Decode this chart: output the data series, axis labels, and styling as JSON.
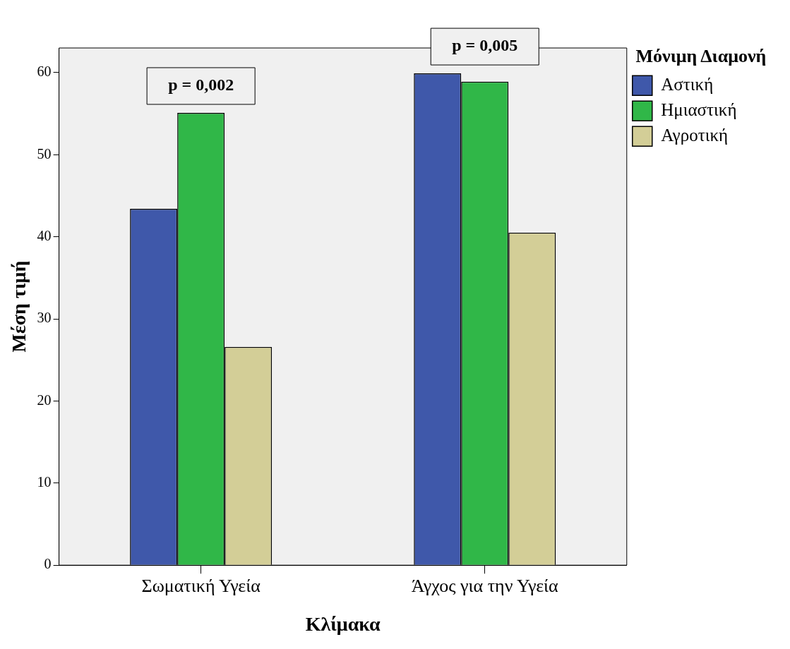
{
  "chart_data": {
    "type": "bar",
    "xlabel": "Κλίμακα",
    "ylabel": "Μέση τιμή",
    "legend_title": "Μόνιμη Διαμονή",
    "categories": [
      "Σωματική Υγεία",
      "Άγχος για την Υγεία"
    ],
    "series": [
      {
        "name": "Αστική",
        "color": "#3f58aa",
        "values": [
          43.4,
          59.9
        ]
      },
      {
        "name": "Ημιαστική",
        "color": "#30b748",
        "values": [
          55.1,
          58.9
        ]
      },
      {
        "name": "Αγροτική",
        "color": "#d3ce97",
        "values": [
          26.6,
          40.5
        ]
      }
    ],
    "ylim": [
      0,
      63
    ],
    "yticks": [
      0,
      10,
      20,
      30,
      40,
      50,
      60
    ],
    "grid": false,
    "legend": "top right",
    "annotations": [
      "p = 0,002",
      "p = 0,005"
    ]
  }
}
